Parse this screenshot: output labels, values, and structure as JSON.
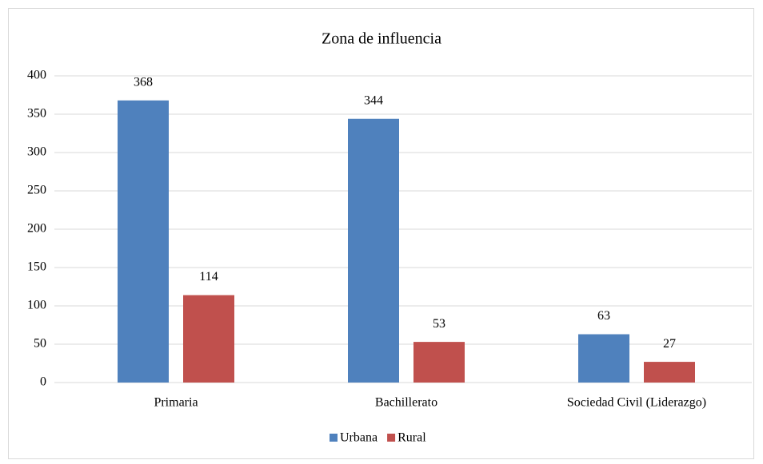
{
  "chart_data": {
    "type": "bar",
    "title": "Zona de influencia",
    "categories": [
      "Primaria",
      "Bachillerato",
      "Sociedad Civil (Liderazgo)"
    ],
    "series": [
      {
        "name": "Urbana",
        "color": "#4f81bd",
        "values": [
          368,
          344,
          63
        ]
      },
      {
        "name": "Rural",
        "color": "#c0504d",
        "values": [
          114,
          53,
          27
        ]
      }
    ],
    "ylim": [
      0,
      400
    ],
    "yticks": [
      0,
      50,
      100,
      150,
      200,
      250,
      300,
      350,
      400
    ],
    "grid": true,
    "legend": "bottom"
  }
}
